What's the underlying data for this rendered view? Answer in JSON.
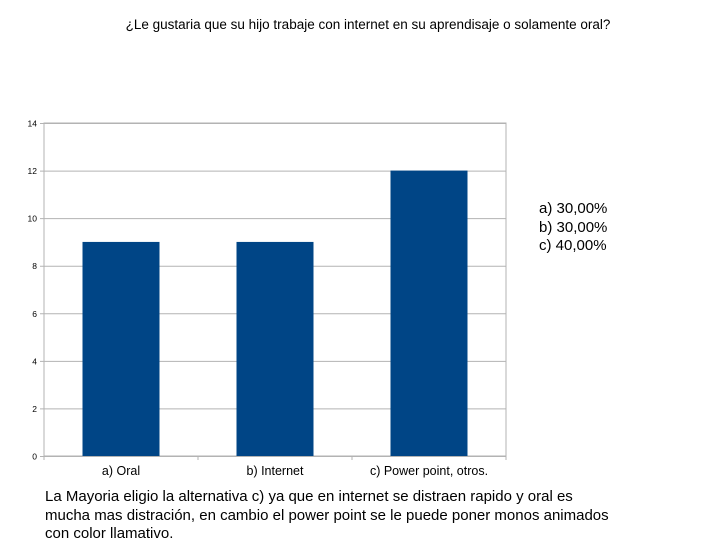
{
  "title": "¿Le gustaria que su hijo trabaje con internet en su aprendisaje o solamente oral?",
  "chart_data": {
    "type": "bar",
    "categories": [
      "a) Oral",
      "b) Internet",
      "c) Power point, otros."
    ],
    "values": [
      9,
      9,
      12
    ],
    "ylim": [
      0,
      14
    ],
    "yticks": [
      0,
      2,
      4,
      6,
      8,
      10,
      12,
      14
    ],
    "grid": true,
    "bar_color": "#004586",
    "grid_color": "#b3b3b3"
  },
  "legend": {
    "items": [
      "a) 30,00%",
      "b) 30,00%",
      "c) 40,00%"
    ]
  },
  "conclusion": {
    "lines": [
      "La Mayoria eligio la alternativa c)  ya que en internet se distraen rapido y oral es",
      "mucha mas distración, en cambio el power point se le puede poner monos animados",
      "con color llamativo."
    ]
  }
}
